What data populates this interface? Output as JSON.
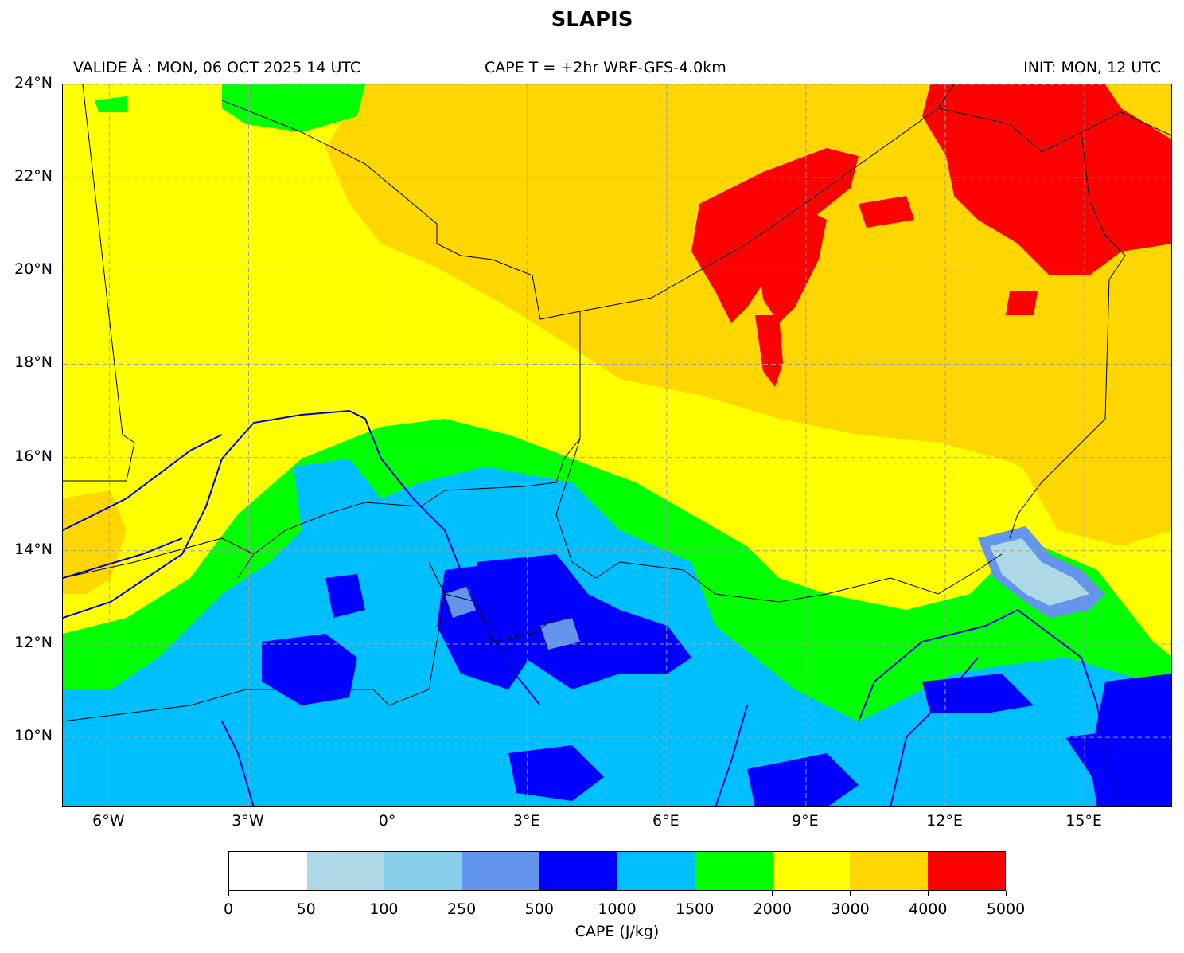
{
  "title": "SLAPIS",
  "header": {
    "valid": "VALIDE À : MON, 06 OCT 2025 14 UTC",
    "field": "CAPE T = +2hr WRF-GFS-4.0km",
    "init": "INIT: MON, 12 UTC"
  },
  "map": {
    "extent": {
      "lon": [
        -7.0,
        16.9
      ],
      "lat": [
        8.5,
        24.0
      ]
    },
    "lat_labels": [
      "24°N",
      "22°N",
      "20°N",
      "18°N",
      "16°N",
      "14°N",
      "12°N",
      "10°N"
    ],
    "lat_values": [
      24,
      22,
      20,
      18,
      16,
      14,
      12,
      10
    ],
    "lon_labels": [
      "6°W",
      "3°W",
      "0°",
      "3°E",
      "6°E",
      "9°E",
      "12°E",
      "15°E"
    ],
    "lon_values": [
      -6,
      -3,
      0,
      3,
      6,
      9,
      12,
      15
    ],
    "gridlines": "dashed",
    "colors": {
      "land_default": "#FFFF00",
      "borders": "#000000",
      "rivers": "#0000CD",
      "grid": "#A0A0A0"
    }
  },
  "colorbar": {
    "label": "CAPE (J/kg)",
    "ticks": [
      "0",
      "50",
      "100",
      "250",
      "500",
      "1000",
      "1500",
      "2000",
      "3000",
      "4000",
      "5000"
    ],
    "colors": [
      "#FFFFFF",
      "#ADD8E6",
      "#87CEEB",
      "#6495ED",
      "#0000FF",
      "#00BFFF",
      "#00FF00",
      "#FFFF00",
      "#FFD700",
      "#FF0000"
    ]
  }
}
